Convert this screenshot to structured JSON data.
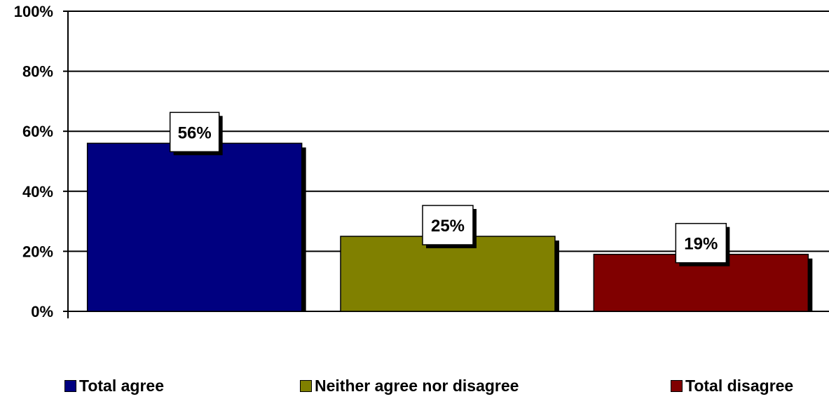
{
  "chart_data": {
    "type": "bar",
    "categories": [
      "Total agree",
      "Neither agree nor disagree",
      "Total disagree"
    ],
    "values": [
      56,
      25,
      19
    ],
    "data_labels": [
      "56%",
      "25%",
      "19%"
    ],
    "colors": [
      "#000080",
      "#808000",
      "#800000"
    ],
    "yticks": [
      "0%",
      "20%",
      "40%",
      "60%",
      "80%",
      "100%"
    ],
    "ylim": [
      0,
      100
    ],
    "grid": true,
    "legend_position": "bottom",
    "title": "",
    "xlabel": "",
    "ylabel": ""
  }
}
